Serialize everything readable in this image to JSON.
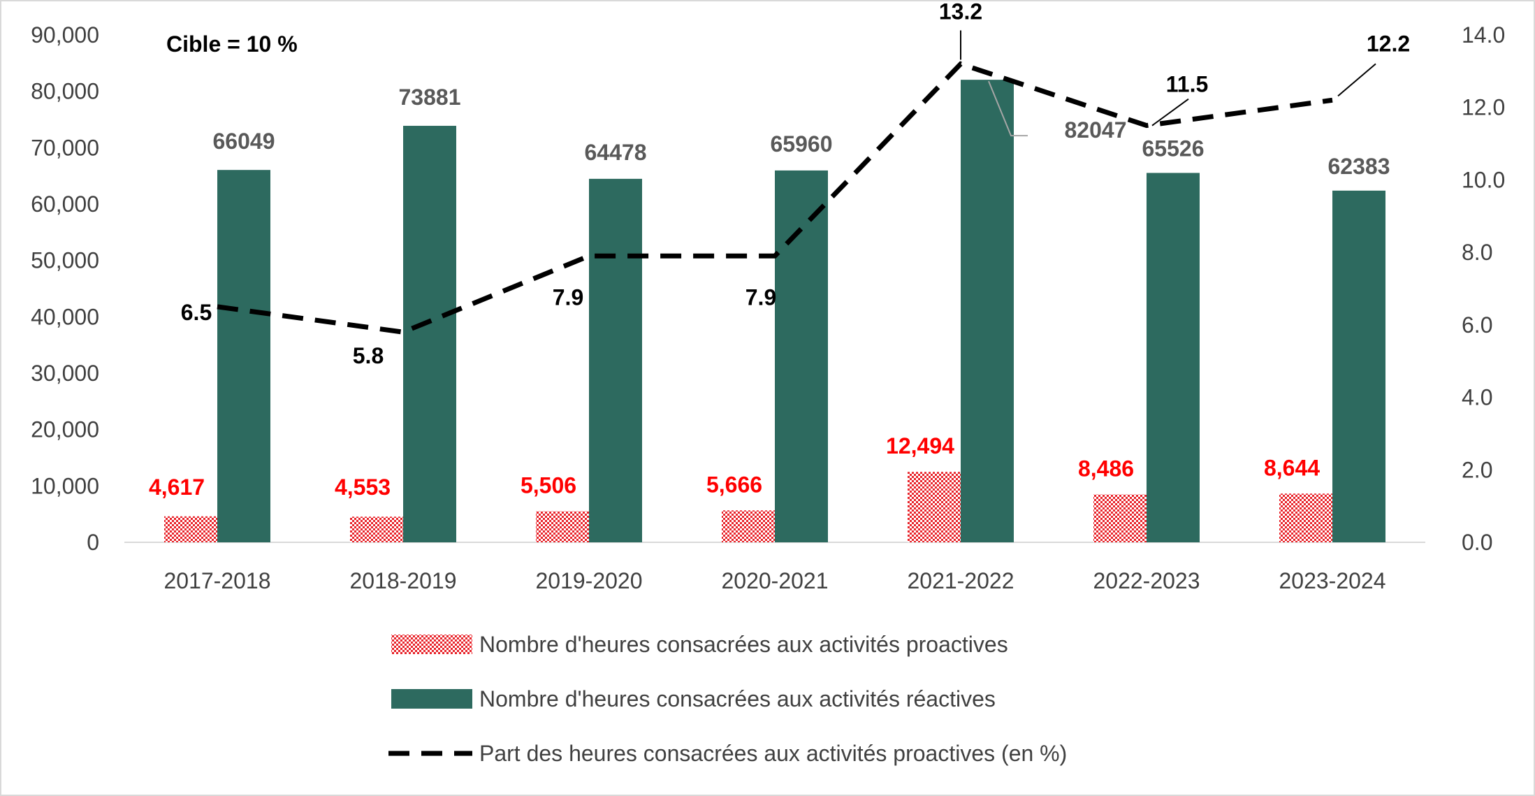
{
  "chart_data": {
    "type": "bar",
    "annotation": "Cible = 10 %",
    "categories": [
      "2017-2018",
      "2018-2019",
      "2019-2020",
      "2020-2021",
      "2021-2022",
      "2022-2023",
      "2023-2024"
    ],
    "y_left": {
      "ylim": [
        0,
        90000
      ],
      "ticks": [
        "0",
        "10,000",
        "20,000",
        "30,000",
        "40,000",
        "50,000",
        "60,000",
        "70,000",
        "80,000",
        "90,000"
      ]
    },
    "y_right": {
      "ylim": [
        0,
        14
      ],
      "ticks": [
        "0.0",
        "2.0",
        "4.0",
        "6.0",
        "8.0",
        "10.0",
        "12.0",
        "14.0"
      ]
    },
    "series": [
      {
        "name": "Nombre d'heures consacrées aux activités proactives",
        "type": "bar",
        "axis": "left",
        "color": "#e8232a",
        "pattern": "checker",
        "values": [
          4617,
          4553,
          5506,
          5666,
          12494,
          8486,
          8644
        ],
        "labels": [
          "4,617",
          "4,553",
          "5,506",
          "5,666",
          "12,494",
          "8,486",
          "8,644"
        ],
        "label_color": "#ff0000"
      },
      {
        "name": "Nombre d'heures consacrées aux activités réactives",
        "type": "bar",
        "axis": "left",
        "color": "#2d6a5f",
        "values": [
          66049,
          73881,
          64478,
          65960,
          82047,
          65526,
          62383
        ],
        "labels": [
          "66049",
          "73881",
          "64478",
          "65960",
          "82047",
          "65526",
          "62383"
        ],
        "label_color": "#595959"
      },
      {
        "name": "Part des heures consacrées aux activités proactives (en %)",
        "type": "line",
        "axis": "right",
        "color": "#000000",
        "dash": true,
        "values": [
          6.5,
          5.8,
          7.9,
          7.9,
          13.2,
          11.5,
          12.2
        ],
        "labels": [
          "6.5",
          "5.8",
          "7.9",
          "7.9",
          "13.2",
          "11.5",
          "12.2"
        ],
        "label_color": "#000000"
      }
    ],
    "legend_position": "bottom",
    "grid": false
  }
}
